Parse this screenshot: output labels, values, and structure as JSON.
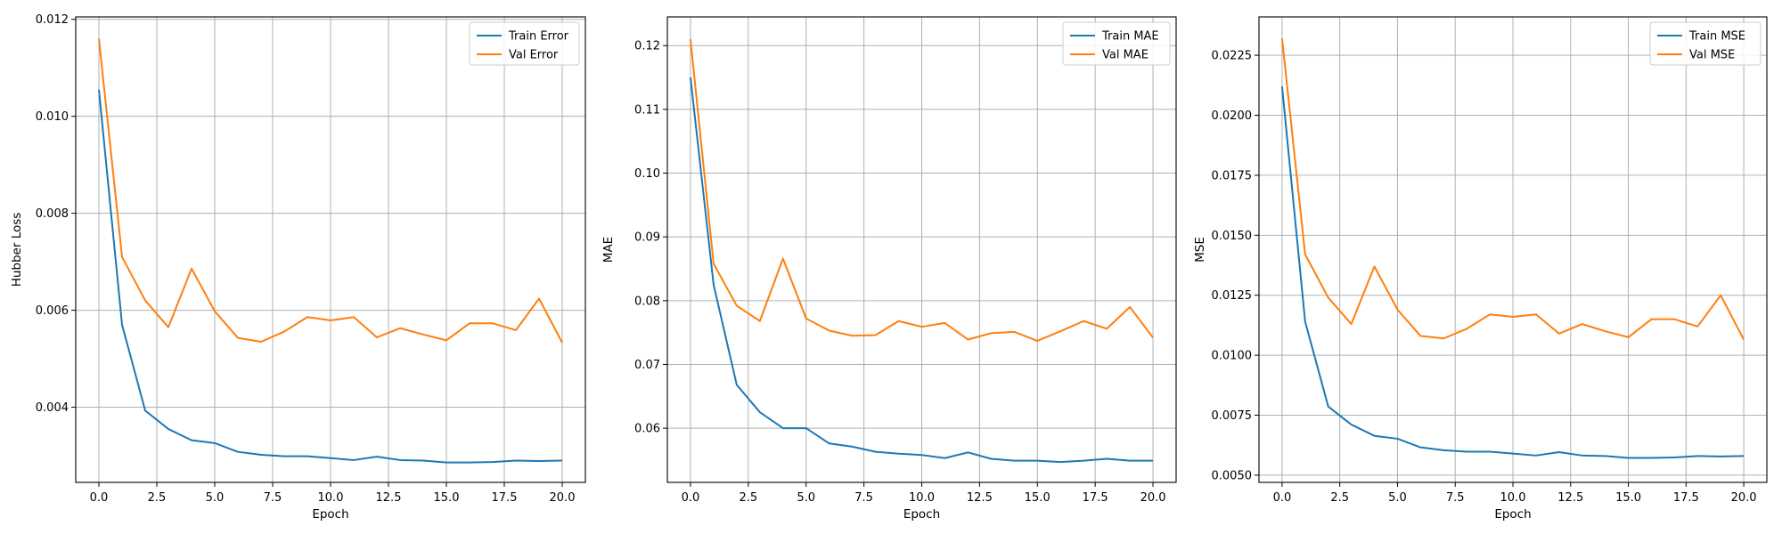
{
  "colors": {
    "train": "#1f77b4",
    "val": "#ff7f0e",
    "grid": "#b0b0b0",
    "axis": "#000000"
  },
  "chart_data": [
    {
      "type": "line",
      "xlabel": "Epoch",
      "ylabel": "Hubber Loss",
      "xlim": [
        -1,
        21
      ],
      "ylim": [
        0.00245,
        0.01205
      ],
      "xticks": [
        0.0,
        2.5,
        5.0,
        7.5,
        10.0,
        12.5,
        15.0,
        17.5,
        20.0
      ],
      "xtick_labels": [
        "0.0",
        "2.5",
        "5.0",
        "7.5",
        "10.0",
        "12.5",
        "15.0",
        "17.5",
        "20.0"
      ],
      "yticks": [
        0.004,
        0.006,
        0.008,
        0.01,
        0.012
      ],
      "ytick_labels": [
        "0.004",
        "0.006",
        "0.008",
        "0.010",
        "0.012"
      ],
      "grid": true,
      "legend_position": "top-right",
      "x": [
        0,
        1,
        2,
        3,
        4,
        5,
        6,
        7,
        8,
        9,
        10,
        11,
        12,
        13,
        14,
        15,
        16,
        17,
        18,
        19,
        20
      ],
      "series": [
        {
          "name": "Train Error",
          "color": "#1f77b4",
          "values": [
            0.01055,
            0.0057,
            0.00393,
            0.00355,
            0.00332,
            0.00326,
            0.00308,
            0.00302,
            0.00299,
            0.00299,
            0.00295,
            0.00291,
            0.00298,
            0.00291,
            0.0029,
            0.00286,
            0.00286,
            0.00287,
            0.0029,
            0.00289,
            0.0029
          ]
        },
        {
          "name": "Val Error",
          "color": "#ff7f0e",
          "values": [
            0.0116,
            0.0071,
            0.0062,
            0.00565,
            0.00686,
            0.00598,
            0.00543,
            0.00535,
            0.00556,
            0.00586,
            0.00579,
            0.00586,
            0.00544,
            0.00563,
            0.0055,
            0.00538,
            0.00573,
            0.00573,
            0.00559,
            0.00624,
            0.00533
          ]
        }
      ]
    },
    {
      "type": "line",
      "xlabel": "Epoch",
      "ylabel": "MAE",
      "xlim": [
        -1,
        21
      ],
      "ylim": [
        0.0515,
        0.1245
      ],
      "xticks": [
        0.0,
        2.5,
        5.0,
        7.5,
        10.0,
        12.5,
        15.0,
        17.5,
        20.0
      ],
      "xtick_labels": [
        "0.0",
        "2.5",
        "5.0",
        "7.5",
        "10.0",
        "12.5",
        "15.0",
        "17.5",
        "20.0"
      ],
      "yticks": [
        0.06,
        0.07,
        0.08,
        0.09,
        0.1,
        0.11,
        0.12
      ],
      "ytick_labels": [
        "0.06",
        "0.07",
        "0.08",
        "0.09",
        "0.10",
        "0.11",
        "0.12"
      ],
      "grid": true,
      "legend_position": "top-right",
      "x": [
        0,
        1,
        2,
        3,
        4,
        5,
        6,
        7,
        8,
        9,
        10,
        11,
        12,
        13,
        14,
        15,
        16,
        17,
        18,
        19,
        20
      ],
      "series": [
        {
          "name": "Train MAE",
          "color": "#1f77b4",
          "values": [
            0.115,
            0.0825,
            0.0668,
            0.0625,
            0.06,
            0.06,
            0.0576,
            0.0571,
            0.0563,
            0.056,
            0.0558,
            0.0553,
            0.0562,
            0.0552,
            0.0549,
            0.0549,
            0.0547,
            0.0549,
            0.0552,
            0.0549,
            0.0549
          ]
        },
        {
          "name": "Val MAE",
          "color": "#ff7f0e",
          "values": [
            0.121,
            0.0858,
            0.0792,
            0.0768,
            0.0866,
            0.0772,
            0.0753,
            0.0745,
            0.0746,
            0.0768,
            0.0759,
            0.0765,
            0.0739,
            0.0749,
            0.0751,
            0.0737,
            0.0752,
            0.0768,
            0.0756,
            0.079,
            0.0742
          ]
        }
      ]
    },
    {
      "type": "line",
      "xlabel": "Epoch",
      "ylabel": "MSE",
      "xlim": [
        -1,
        21
      ],
      "ylim": [
        0.0047,
        0.0241
      ],
      "xticks": [
        0.0,
        2.5,
        5.0,
        7.5,
        10.0,
        12.5,
        15.0,
        17.5,
        20.0
      ],
      "xtick_labels": [
        "0.0",
        "2.5",
        "5.0",
        "7.5",
        "10.0",
        "12.5",
        "15.0",
        "17.5",
        "20.0"
      ],
      "yticks": [
        0.005,
        0.0075,
        0.01,
        0.0125,
        0.015,
        0.0175,
        0.02,
        0.0225
      ],
      "ytick_labels": [
        "0.0050",
        "0.0075",
        "0.0100",
        "0.0125",
        "0.0150",
        "0.0175",
        "0.0200",
        "0.0225"
      ],
      "grid": true,
      "legend_position": "top-right",
      "x": [
        0,
        1,
        2,
        3,
        4,
        5,
        6,
        7,
        8,
        9,
        10,
        11,
        12,
        13,
        14,
        15,
        16,
        17,
        18,
        19,
        20
      ],
      "series": [
        {
          "name": "Train MSE",
          "color": "#1f77b4",
          "values": [
            0.0212,
            0.0114,
            0.00786,
            0.00711,
            0.00664,
            0.00652,
            0.00616,
            0.00604,
            0.00598,
            0.00598,
            0.0059,
            0.00582,
            0.00596,
            0.00582,
            0.0058,
            0.00572,
            0.00572,
            0.00574,
            0.0058,
            0.00578,
            0.0058
          ]
        },
        {
          "name": "Val MSE",
          "color": "#ff7f0e",
          "values": [
            0.0232,
            0.0142,
            0.0124,
            0.0113,
            0.0137,
            0.0119,
            0.0108,
            0.0107,
            0.0111,
            0.0117,
            0.0116,
            0.0117,
            0.0109,
            0.0113,
            0.011,
            0.01075,
            0.0115,
            0.0115,
            0.0112,
            0.0125,
            0.01065
          ]
        }
      ]
    }
  ]
}
